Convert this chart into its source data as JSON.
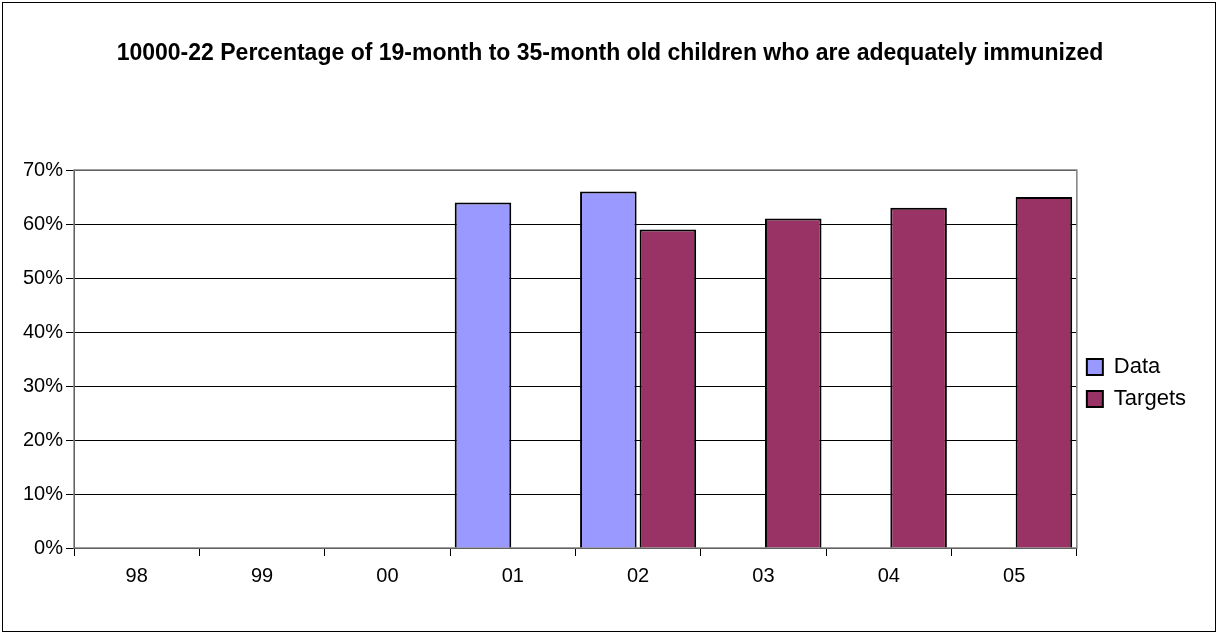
{
  "chart_data": {
    "type": "bar",
    "title": "10000-22  Percentage of 19-month to 35-month old children who are adequately immunized",
    "categories": [
      "98",
      "99",
      "00",
      "01",
      "02",
      "03",
      "04",
      "05"
    ],
    "series": [
      {
        "name": "Data",
        "color": "#9999ff",
        "values": [
          null,
          null,
          null,
          64,
          66,
          null,
          null,
          null
        ]
      },
      {
        "name": "Targets",
        "color": "#993366",
        "values": [
          null,
          null,
          null,
          null,
          59,
          61,
          63,
          65
        ]
      }
    ],
    "ylim": [
      0,
      70
    ],
    "yticks": [
      {
        "value": 0,
        "label": "0%"
      },
      {
        "value": 10,
        "label": "10%"
      },
      {
        "value": 20,
        "label": "20%"
      },
      {
        "value": 30,
        "label": "30%"
      },
      {
        "value": 40,
        "label": "40%"
      },
      {
        "value": 50,
        "label": "50%"
      },
      {
        "value": 60,
        "label": "60%"
      },
      {
        "value": 70,
        "label": "70%"
      }
    ],
    "grid": "y",
    "legend": "right"
  }
}
